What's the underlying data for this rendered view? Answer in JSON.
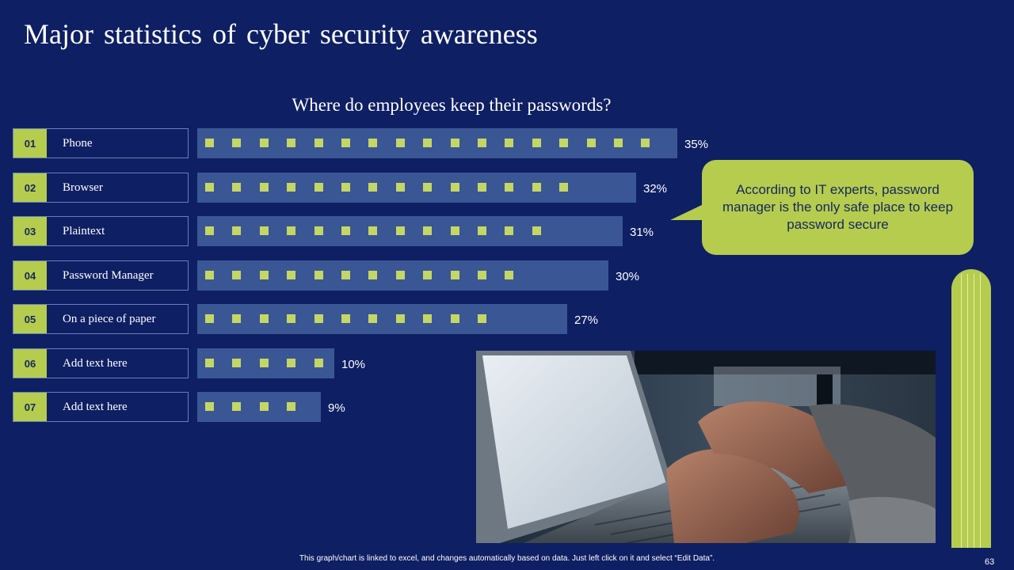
{
  "slide": {
    "title": "Major statistics of cyber security awareness",
    "callout": "According to IT experts, password manager is the only safe place to keep password secure",
    "footnote": "This graph/chart is linked to excel,  and changes automatically based on data. Just left click on it and select “Edit Data”.",
    "page_number": "63"
  },
  "colors": {
    "background": "#0e1f63",
    "accent": "#b5cc4f",
    "bar": "#3b5695",
    "dot": "#c4d764"
  },
  "chart_data": {
    "type": "bar",
    "orientation": "horizontal",
    "title": "Where do employees keep their passwords?",
    "numbers": [
      "01",
      "02",
      "03",
      "04",
      "05",
      "06",
      "07"
    ],
    "categories": [
      "Phone",
      "Browser",
      "Plaintext",
      "Password Manager",
      "On a piece of paper",
      "Add text  here",
      "Add text  here"
    ],
    "values": [
      35,
      32,
      31,
      30,
      27,
      10,
      9
    ],
    "value_labels": [
      "35%",
      "32%",
      "31%",
      "30%",
      "27%",
      "10%",
      "9%"
    ],
    "unit": "%",
    "dot_counts": [
      17,
      14,
      13,
      12,
      11,
      5,
      4
    ]
  }
}
